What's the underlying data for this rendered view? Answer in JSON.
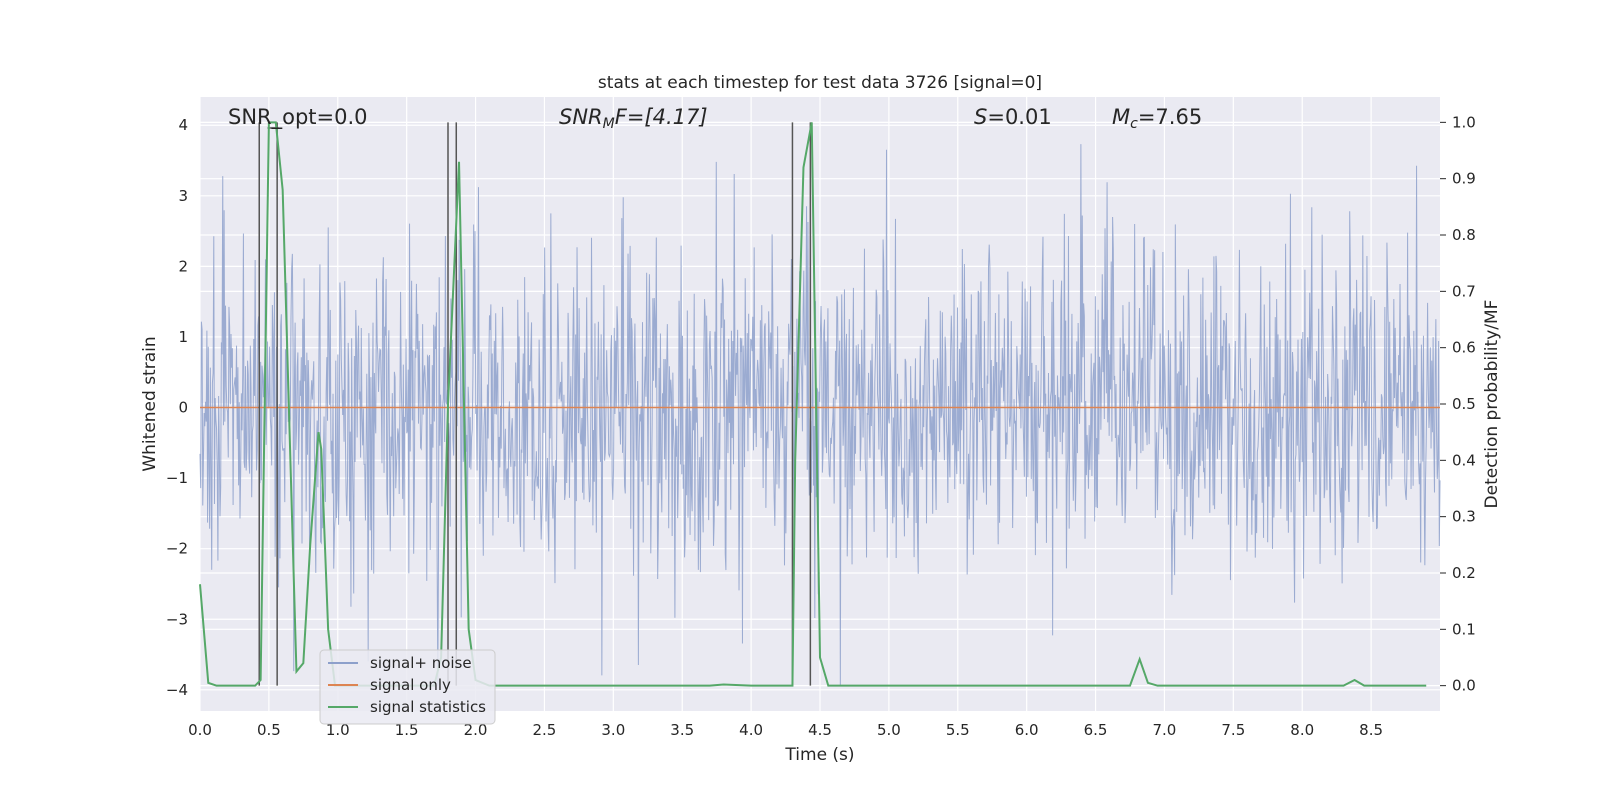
{
  "chart_data": {
    "type": "line",
    "title": "stats at each timestep for test data 3726 [signal=0]",
    "xlabel": "Time (s)",
    "ylabel": "Whitened strain",
    "y2label": "Detection probability/MF",
    "xlim": [
      0.0,
      9.0
    ],
    "ylim": [
      -4.3,
      4.4
    ],
    "y2lim": [
      -0.045,
      1.045
    ],
    "xticks": [
      "0.0",
      "0.5",
      "1.0",
      "1.5",
      "2.0",
      "2.5",
      "3.0",
      "3.5",
      "4.0",
      "4.5",
      "5.0",
      "5.5",
      "6.0",
      "6.5",
      "7.0",
      "7.5",
      "8.0",
      "8.5"
    ],
    "yticks": [
      "4",
      "3",
      "2",
      "1",
      "0",
      "−1",
      "−2",
      "−3",
      "−4"
    ],
    "y2ticks": [
      "1.0",
      "0.9",
      "0.8",
      "0.7",
      "0.6",
      "0.5",
      "0.4",
      "0.3",
      "0.2",
      "0.1",
      "0.0"
    ],
    "grid": true,
    "legend_position": "lower-left",
    "annotations": {
      "snr_opt": "SNR_opt=0.0",
      "snr_mf_prefix": "SNR",
      "snr_mf_sub": "M",
      "snr_mf_suffix": "F=[4.17]",
      "s_prefix": "S",
      "s_suffix": "=0.01",
      "mc_prefix": "M",
      "mc_sub": "c",
      "mc_suffix": "=7.65"
    },
    "series": [
      {
        "name": "signal+ noise",
        "color": "#8da0cb",
        "axis": "left",
        "description": "whitened strain noise, approx gaussian, envelope ~ [-3.9, 4.0]",
        "noise_seed": 3726,
        "samples": 1800,
        "sigma": 1.0
      },
      {
        "name": "signal only",
        "color": "#dd8452",
        "axis": "left",
        "x": [
          0.0,
          9.0
        ],
        "y": [
          0.0,
          0.0
        ]
      },
      {
        "name": "signal statistics",
        "color": "#55a868",
        "axis": "right",
        "x": [
          0.0,
          0.06,
          0.12,
          0.2,
          0.3,
          0.4,
          0.44,
          0.5,
          0.55,
          0.6,
          0.7,
          0.75,
          0.8,
          0.86,
          0.88,
          0.93,
          0.98,
          1.0,
          1.1,
          1.2,
          1.3,
          1.4,
          1.5,
          1.6,
          1.7,
          1.75,
          1.8,
          1.88,
          1.95,
          2.0,
          2.1,
          2.5,
          3.0,
          3.5,
          3.7,
          3.8,
          4.0,
          4.2,
          4.3,
          4.32,
          4.38,
          4.44,
          4.5,
          4.56,
          4.6,
          5.0,
          5.5,
          6.0,
          6.5,
          6.75,
          6.82,
          6.88,
          6.95,
          7.0,
          7.5,
          8.0,
          8.3,
          8.38,
          8.45,
          8.9
        ],
        "y": [
          0.18,
          0.005,
          0.0,
          0.0,
          0.0,
          0.0,
          0.01,
          1.0,
          1.0,
          0.88,
          0.025,
          0.04,
          0.25,
          0.45,
          0.42,
          0.1,
          0.0,
          0.0,
          0.0,
          0.0,
          0.0,
          0.0,
          0.0,
          0.0,
          0.0,
          0.05,
          0.5,
          0.93,
          0.1,
          0.01,
          0.0,
          0.0,
          0.0,
          0.0,
          0.0,
          0.002,
          0.0,
          0.0,
          0.0,
          0.4,
          0.92,
          1.0,
          0.05,
          0.0,
          0.0,
          0.0,
          0.0,
          0.0,
          0.0,
          0.0,
          0.047,
          0.005,
          0.0,
          0.0,
          0.0,
          0.0,
          0.0,
          0.01,
          0.0,
          0.0
        ]
      }
    ],
    "vertical_lines": [
      {
        "x": 0.43,
        "y2": [
          0.0,
          1.0
        ]
      },
      {
        "x": 0.56,
        "y2": [
          0.0,
          1.0
        ]
      },
      {
        "x": 1.8,
        "y2": [
          0.0,
          1.0
        ]
      },
      {
        "x": 1.86,
        "y2": [
          0.0,
          1.0
        ]
      },
      {
        "x": 4.3,
        "y2": [
          0.0,
          1.0
        ]
      },
      {
        "x": 4.43,
        "y2": [
          0.0,
          1.0
        ]
      }
    ],
    "horizontal_markers": [
      {
        "x": [
          0.49,
          0.57
        ],
        "y2": 0.99
      }
    ]
  }
}
